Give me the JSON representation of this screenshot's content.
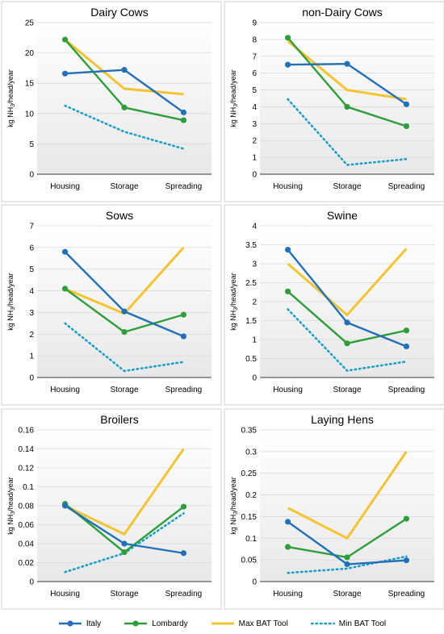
{
  "chart_data": [
    {
      "type": "line",
      "title": "Dairy Cows",
      "ylabel": "kg NH3/head/year",
      "categories": [
        "Housing",
        "Storage",
        "Spreading"
      ],
      "ylim": [
        0,
        25
      ],
      "yticks": [
        "0",
        "5",
        "10",
        "15",
        "20",
        "25"
      ],
      "series": [
        {
          "name": "Italy",
          "values": [
            16.6,
            17.2,
            10.2
          ]
        },
        {
          "name": "Lombardy",
          "values": [
            22.2,
            11.0,
            8.9
          ]
        },
        {
          "name": "Max BAT Tool",
          "values": [
            22.2,
            14.1,
            13.2
          ]
        },
        {
          "name": "Min BAT Tool",
          "values": [
            11.3,
            7.0,
            4.2
          ]
        }
      ]
    },
    {
      "type": "line",
      "title": "non-Dairy Cows",
      "ylabel": "kg NH3/head/year",
      "categories": [
        "Housing",
        "Storage",
        "Spreading"
      ],
      "ylim": [
        0,
        9
      ],
      "yticks": [
        "0",
        "1",
        "2",
        "3",
        "4",
        "5",
        "6",
        "7",
        "8",
        "9"
      ],
      "series": [
        {
          "name": "Italy",
          "values": [
            6.5,
            6.55,
            4.15
          ]
        },
        {
          "name": "Lombardy",
          "values": [
            8.1,
            4.0,
            2.85
          ]
        },
        {
          "name": "Max BAT Tool",
          "values": [
            7.9,
            5.0,
            4.45
          ]
        },
        {
          "name": "Min BAT Tool",
          "values": [
            4.45,
            0.55,
            0.9
          ]
        }
      ]
    },
    {
      "type": "line",
      "title": "Sows",
      "ylabel": "kg NH3/head/year",
      "categories": [
        "Housing",
        "Storage",
        "Spreading"
      ],
      "ylim": [
        0,
        7
      ],
      "yticks": [
        "0",
        "1",
        "2",
        "3",
        "4",
        "5",
        "6",
        "7"
      ],
      "series": [
        {
          "name": "Italy",
          "values": [
            5.8,
            3.05,
            1.9
          ]
        },
        {
          "name": "Lombardy",
          "values": [
            4.1,
            2.1,
            2.9
          ]
        },
        {
          "name": "Max BAT Tool",
          "values": [
            4.1,
            2.95,
            6.0
          ]
        },
        {
          "name": "Min BAT Tool",
          "values": [
            2.5,
            0.3,
            0.72
          ]
        }
      ]
    },
    {
      "type": "line",
      "title": "Swine",
      "ylabel": "kg NH3/head/year",
      "categories": [
        "Housing",
        "Storage",
        "Spreading"
      ],
      "ylim": [
        0,
        4
      ],
      "yticks": [
        "0",
        "0.5",
        "1",
        "1.5",
        "2",
        "2.5",
        "3",
        "3.5",
        "4"
      ],
      "series": [
        {
          "name": "Italy",
          "values": [
            3.37,
            1.45,
            0.82
          ]
        },
        {
          "name": "Lombardy",
          "values": [
            2.27,
            0.9,
            1.24
          ]
        },
        {
          "name": "Max BAT Tool",
          "values": [
            3.0,
            1.65,
            3.4
          ]
        },
        {
          "name": "Min BAT Tool",
          "values": [
            1.8,
            0.18,
            0.42
          ]
        }
      ]
    },
    {
      "type": "line",
      "title": "Broilers",
      "ylabel": "kg NH3/head/year",
      "categories": [
        "Housing",
        "Storage",
        "Spreading"
      ],
      "ylim": [
        0,
        0.16
      ],
      "yticks": [
        "0",
        "0.02",
        "0.04",
        "0.06",
        "0.08",
        "0.1",
        "0.12",
        "0.14",
        "0.16"
      ],
      "series": [
        {
          "name": "Italy",
          "values": [
            0.08,
            0.04,
            0.03
          ]
        },
        {
          "name": "Lombardy",
          "values": [
            0.082,
            0.031,
            0.079
          ]
        },
        {
          "name": "Max BAT Tool",
          "values": [
            0.08,
            0.05,
            0.14
          ]
        },
        {
          "name": "Min BAT Tool",
          "values": [
            0.01,
            0.03,
            0.072
          ]
        }
      ]
    },
    {
      "type": "line",
      "title": "Laying Hens",
      "ylabel": "kg NH3/head/year",
      "categories": [
        "Housing",
        "Storage",
        "Spreading"
      ],
      "ylim": [
        0,
        0.35
      ],
      "yticks": [
        "0",
        "0.05",
        "0.1",
        "0.15",
        "0.2",
        "0.25",
        "0.3",
        "0.35"
      ],
      "series": [
        {
          "name": "Italy",
          "values": [
            0.138,
            0.04,
            0.049
          ]
        },
        {
          "name": "Lombardy",
          "values": [
            0.08,
            0.056,
            0.145
          ]
        },
        {
          "name": "Max BAT Tool",
          "values": [
            0.17,
            0.1,
            0.3
          ]
        },
        {
          "name": "Min BAT Tool",
          "values": [
            0.02,
            0.03,
            0.058
          ]
        }
      ]
    }
  ],
  "legend": [
    {
      "name": "Italy",
      "color": "#1f77b4",
      "style": "solid-marker"
    },
    {
      "name": "Lombardy",
      "color": "#2ca02c",
      "style": "solid-marker"
    },
    {
      "name": "Max BAT Tool",
      "color": "#f2c12e",
      "style": "solid"
    },
    {
      "name": "Min BAT Tool",
      "color": "#17a2c7",
      "style": "dotted"
    }
  ],
  "colors": {
    "Italy": "#2170b8",
    "Lombardy": "#2e9e3a",
    "Max BAT Tool": "#f4c430",
    "Min BAT Tool": "#1a9fc9"
  }
}
